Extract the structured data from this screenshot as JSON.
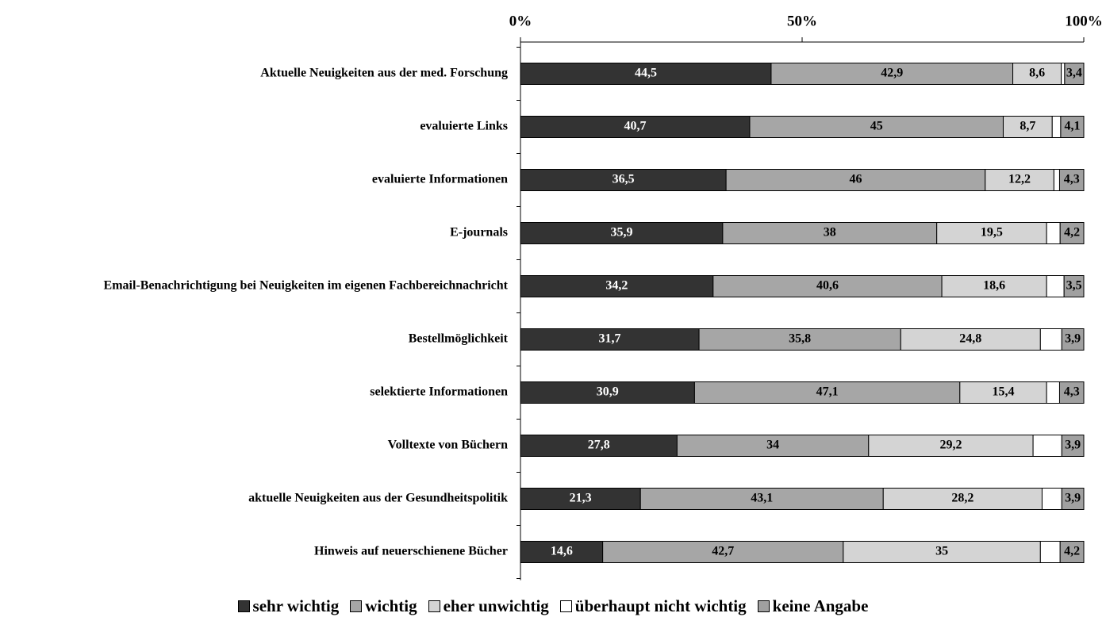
{
  "chart_data": {
    "type": "stacked-bar-horizontal",
    "categories": [
      "Aktuelle Neuigkeiten aus der med. Forschung",
      "evaluierte Links",
      "evaluierte Informationen",
      "E-journals",
      "Email-Benachrichtigung bei Neuigkeiten im eigenen Fachbereichnachricht",
      "Bestellmöglichkeit",
      "selektierte Informationen",
      "Volltexte von Büchern",
      "aktuelle Neuigkeiten aus der Gesundheitspolitik",
      "Hinweis auf neuerschienene Bücher"
    ],
    "series": [
      {
        "name": "sehr wichtig",
        "color": "#333333",
        "values": [
          44.5,
          40.7,
          36.5,
          35.9,
          34.2,
          31.7,
          30.9,
          27.8,
          21.3,
          14.6
        ],
        "value_labels": [
          "44,5",
          "40,7",
          "36,5",
          "35,9",
          "34,2",
          "31,7",
          "30,9",
          "27,8",
          "21,3",
          "14,6"
        ]
      },
      {
        "name": "wichtig",
        "color": "#a6a6a6",
        "values": [
          42.9,
          45,
          46,
          38,
          40.6,
          35.8,
          47.1,
          34,
          43.1,
          42.7
        ],
        "value_labels": [
          "42,9",
          "45",
          "46",
          "38",
          "40,6",
          "35,8",
          "47,1",
          "34",
          "43,1",
          "42,7"
        ]
      },
      {
        "name": "eher unwichtig",
        "color": "#d4d4d4",
        "values": [
          8.6,
          8.7,
          12.2,
          19.5,
          18.6,
          24.8,
          15.4,
          29.2,
          28.2,
          35
        ],
        "value_labels": [
          "8,6",
          "8,7",
          "12,2",
          "19,5",
          "18,6",
          "24,8",
          "15,4",
          "29,2",
          "28,2",
          "35"
        ]
      },
      {
        "name": "überhaupt nicht wichtig",
        "color": "#ffffff",
        "values": [
          0.6,
          1.5,
          1.0,
          2.4,
          3.1,
          3.8,
          2.3,
          5.1,
          3.5,
          3.5
        ]
      },
      {
        "name": "keine Angabe",
        "color": "#a0a0a0",
        "values": [
          3.4,
          4.1,
          4.3,
          4.2,
          3.5,
          3.9,
          4.3,
          3.9,
          3.9,
          4.2
        ],
        "value_labels": [
          "3,4",
          "4,1",
          "4,3",
          "4,2",
          "3,5",
          "3,9",
          "4,3",
          "3,9",
          "3,9",
          "4,2"
        ]
      }
    ],
    "xlim": [
      0,
      100
    ],
    "xticks": [
      {
        "value": 0,
        "label": "0%"
      },
      {
        "value": 50,
        "label": "50%"
      },
      {
        "value": 100,
        "label": "100%"
      }
    ],
    "legend": "bottom"
  }
}
